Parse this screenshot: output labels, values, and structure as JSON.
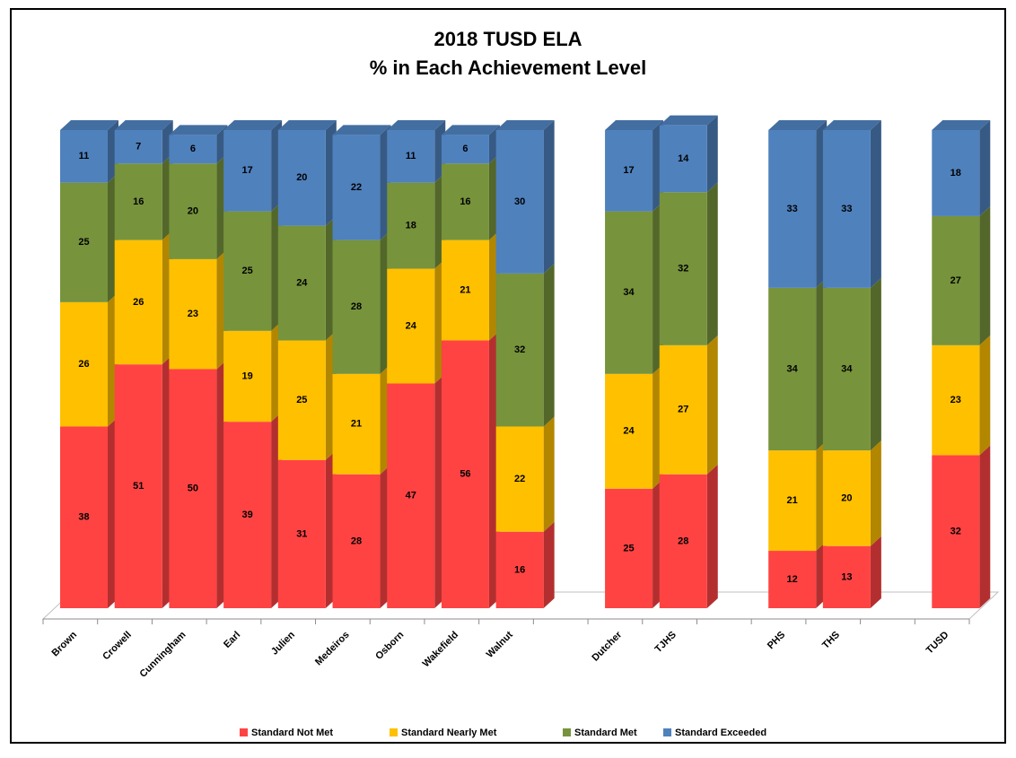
{
  "chart_data": {
    "type": "stacked_bar_3d",
    "title": "2018 TUSD ELA",
    "subtitle": "% in Each Achievement Level",
    "categories": [
      "Brown",
      "Crowell",
      "Cunningham",
      "Earl",
      "Julien",
      "Medeiros",
      "Osborn",
      "Wakefield",
      "Walnut",
      null,
      "Dutcher",
      "TJHS",
      null,
      "PHS",
      "THS",
      null,
      "TUSD"
    ],
    "series": [
      {
        "name": "Standard Not Met",
        "color": "#ff4343",
        "values": [
          38,
          51,
          50,
          39,
          31,
          28,
          47,
          56,
          16,
          null,
          25,
          28,
          null,
          12,
          13,
          null,
          32
        ]
      },
      {
        "name": "Standard Nearly Met",
        "color": "#ffc000",
        "values": [
          26,
          26,
          23,
          19,
          25,
          21,
          24,
          21,
          22,
          null,
          24,
          27,
          null,
          21,
          20,
          null,
          23
        ]
      },
      {
        "name": "Standard Met",
        "color": "#77933c",
        "values": [
          25,
          16,
          20,
          25,
          24,
          28,
          18,
          16,
          32,
          null,
          34,
          32,
          null,
          34,
          34,
          null,
          27
        ]
      },
      {
        "name": "Standard Exceeded",
        "color": "#4f81bd",
        "values": [
          11,
          7,
          6,
          17,
          20,
          22,
          11,
          6,
          30,
          null,
          17,
          14,
          null,
          33,
          33,
          null,
          18
        ]
      }
    ],
    "ylim": [
      0,
      100
    ],
    "legend": "bottom"
  }
}
